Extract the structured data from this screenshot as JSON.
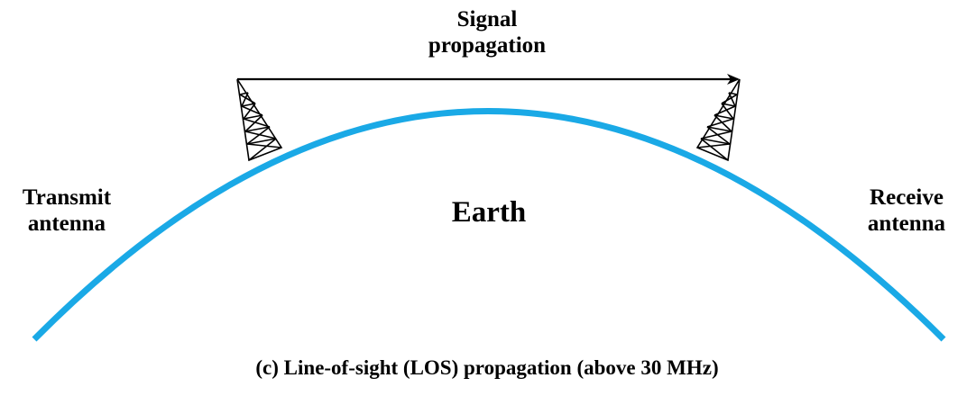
{
  "colors": {
    "earth_arc": "#1aa9e6",
    "ink": "#000000",
    "background": "#ffffff"
  },
  "labels": {
    "signal_line1": "Signal",
    "signal_line2": "propagation",
    "transmit_line1": "Transmit",
    "transmit_line2": "antenna",
    "receive_line1": "Receive",
    "receive_line2": "antenna",
    "earth": "Earth",
    "caption": "(c) Line-of-sight (LOS) propagation (above 30 MHz)"
  },
  "icons": {
    "transmit_tower": "lattice-tower-icon",
    "receive_tower": "lattice-tower-icon",
    "signal_arrow": "arrow-right-icon"
  }
}
